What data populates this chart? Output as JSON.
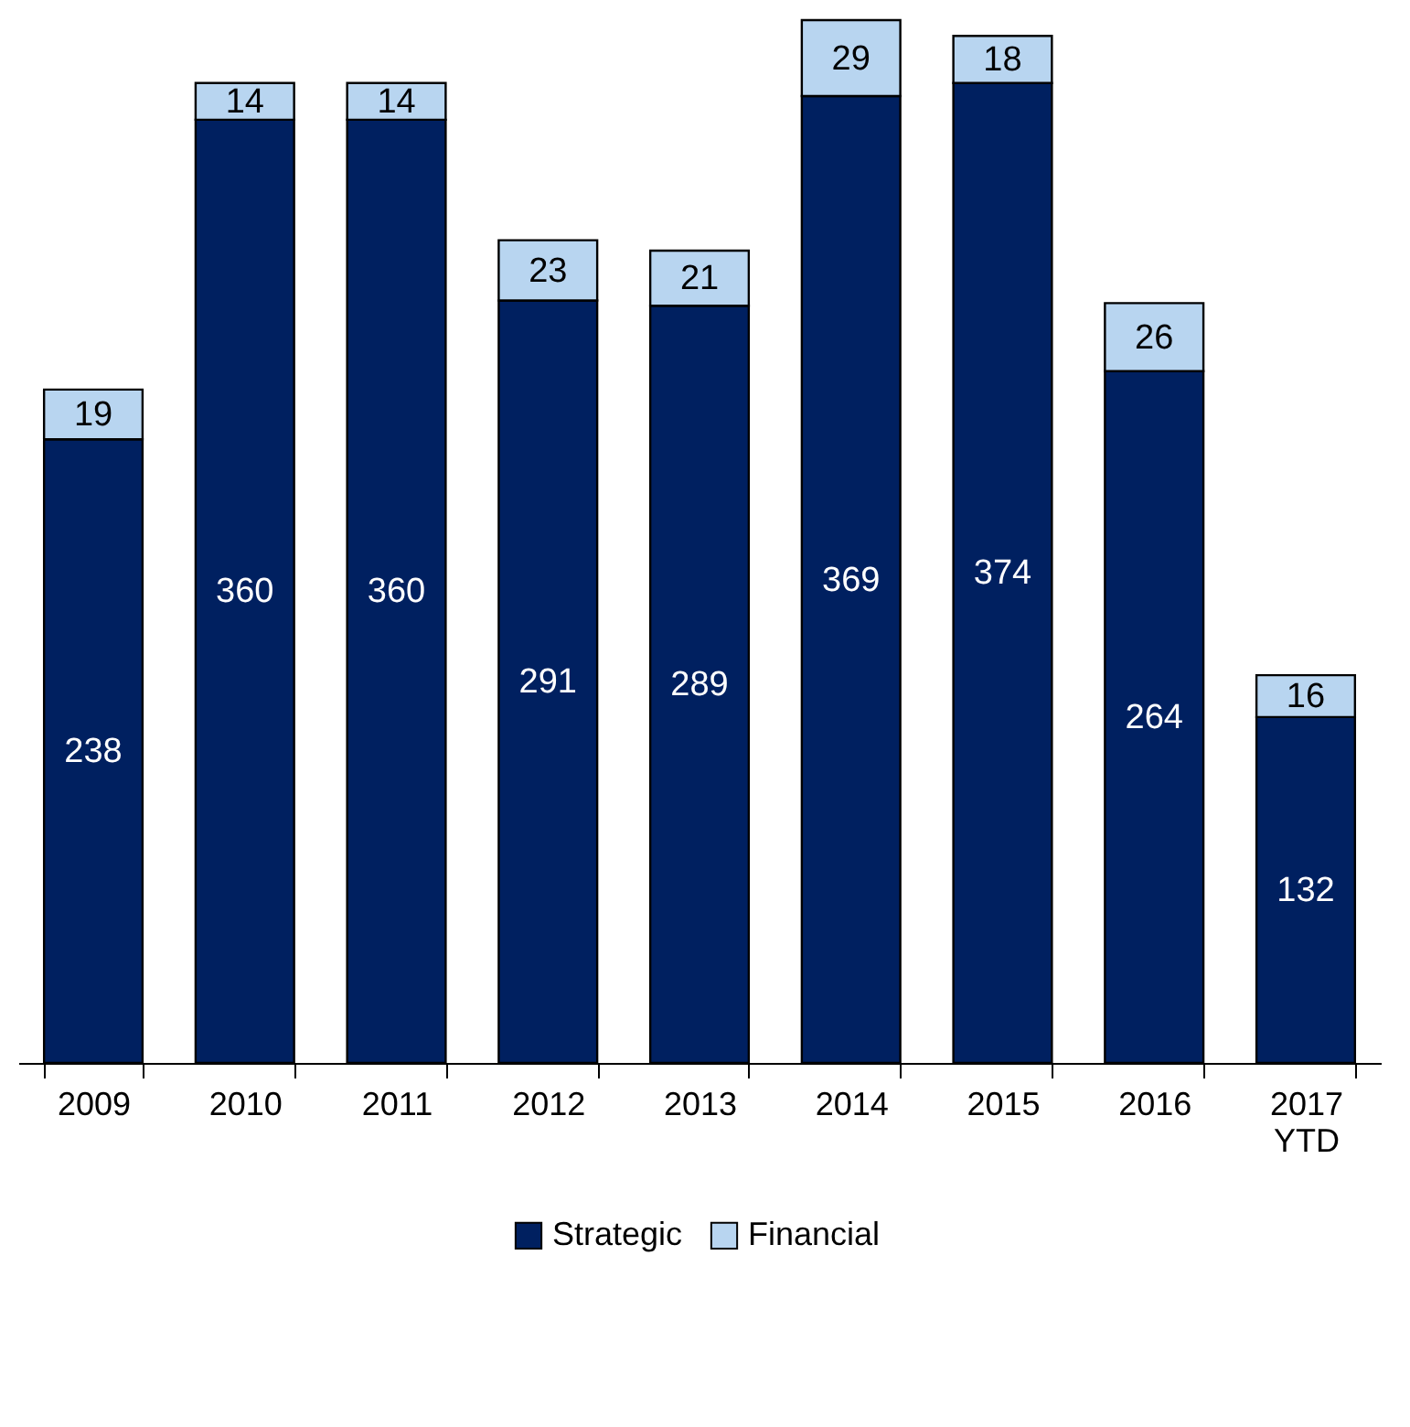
{
  "chart_data": {
    "type": "bar",
    "stacked": true,
    "data_labels": true,
    "legend": "bottom",
    "categories": [
      "2009",
      "2010",
      "2011",
      "2012",
      "2013",
      "2014",
      "2015",
      "2016",
      "2017 YTD"
    ],
    "series": [
      {
        "name": "Strategic",
        "color": "#002060",
        "values": [
          238,
          360,
          360,
          291,
          289,
          369,
          374,
          264,
          132
        ]
      },
      {
        "name": "Financial",
        "color": "#b8d5f0",
        "values": [
          19,
          14,
          14,
          23,
          21,
          29,
          18,
          26,
          16
        ]
      }
    ]
  }
}
